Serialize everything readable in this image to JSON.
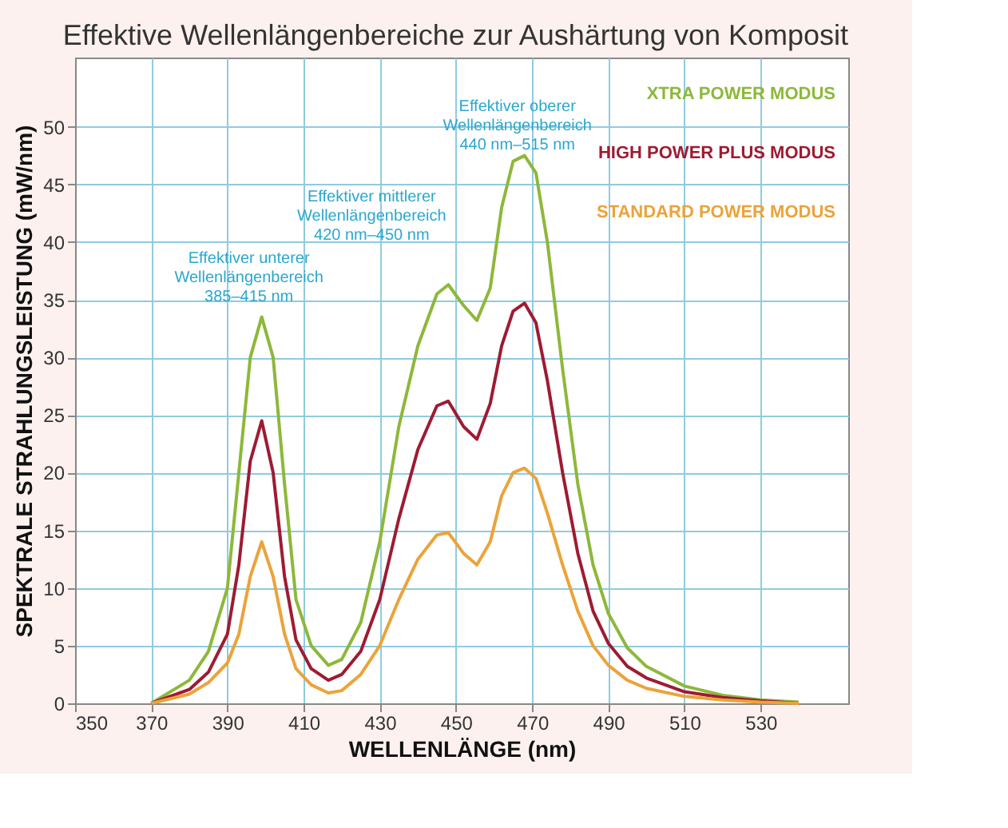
{
  "chart_data": {
    "type": "line",
    "title": "Effektive Wellenlängenbereiche zur Aushärtung von Komposit",
    "xlabel": "WELLENLÄNGE (nm)",
    "ylabel": "SPEKTRALE STRAHLUNGSLEISTUNG (mW/nm)",
    "x": [
      370,
      380,
      385,
      390,
      393,
      396,
      399,
      402,
      405,
      408,
      412,
      416.5,
      420,
      425,
      430,
      435,
      440,
      445,
      448,
      452,
      455.5,
      459,
      462,
      465,
      468,
      471,
      474,
      478,
      482,
      486,
      490,
      495,
      500,
      510,
      520,
      530,
      540
    ],
    "series": [
      {
        "name": "XTRA POWER MODUS",
        "color": "#8db83a",
        "values": [
          0,
          2,
          4.5,
          10,
          20,
          30,
          33.5,
          30,
          19,
          9,
          5,
          3.3,
          3.8,
          7,
          14,
          24,
          31,
          35.5,
          36.3,
          34.5,
          33.2,
          36,
          43,
          47,
          47.5,
          46,
          40,
          29,
          19,
          12,
          7.8,
          4.8,
          3.2,
          1.5,
          0.7,
          0.3,
          0.1
        ]
      },
      {
        "name": "HIGH POWER PLUS MODUS",
        "color": "#9e1b32",
        "values": [
          0,
          1.2,
          2.7,
          6,
          12,
          21,
          24.5,
          20,
          11,
          5.5,
          3,
          2,
          2.5,
          4.5,
          9,
          16,
          22,
          25.8,
          26.2,
          24,
          22.9,
          26,
          31,
          34,
          34.7,
          33,
          28,
          20,
          13,
          8,
          5.2,
          3.2,
          2.2,
          1,
          0.5,
          0.2,
          0
        ]
      },
      {
        "name": "STANDARD POWER MODUS",
        "color": "#eba33a",
        "values": [
          0,
          0.8,
          1.8,
          3.5,
          6,
          11,
          14,
          11,
          6,
          3,
          1.6,
          0.9,
          1.1,
          2.5,
          5,
          9,
          12.5,
          14.6,
          14.8,
          13,
          12,
          14,
          18,
          20,
          20.4,
          19.5,
          16.5,
          12,
          8,
          5,
          3.3,
          2,
          1.3,
          0.6,
          0.3,
          0.1,
          0
        ]
      }
    ],
    "annotations": [
      {
        "text": "Effektiver unterer\nWellenlängenbereich\n385–415 nm",
        "x": 399,
        "y": 33.5
      },
      {
        "text": "Effektiver mittlerer\nWellenlängenbereich\n420 nm–450 nm",
        "x": 448,
        "y": 36.3
      },
      {
        "text": "Effektiver oberer\nWellenlängenbereich\n440 nm–515 nm",
        "x": 467.8,
        "y": 47.5
      }
    ],
    "xlim": [
      350,
      553
    ],
    "xticks": [
      350,
      370,
      390,
      410,
      430,
      450,
      470,
      490,
      510,
      530
    ],
    "ylim": [
      0,
      56
    ],
    "yticks": [
      0,
      5,
      10,
      15,
      20,
      25,
      30,
      35,
      40,
      45,
      50
    ],
    "grid": true,
    "legend": "top right",
    "line_style": "solid",
    "marker": "none"
  }
}
